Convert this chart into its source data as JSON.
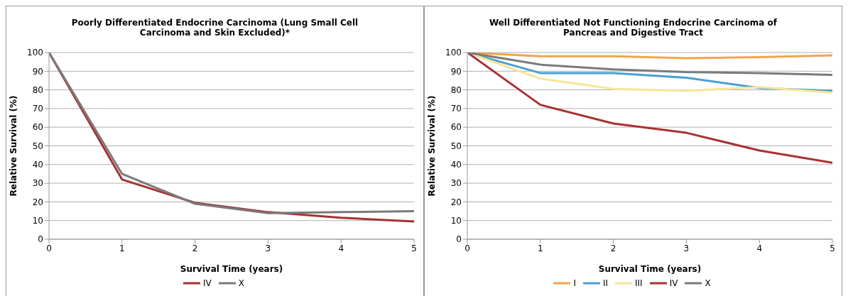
{
  "chart_data": [
    {
      "type": "line",
      "title": "Poorly Differentiated Endocrine Carcinoma (Lung Small Cell Carcinoma and Skin Excluded)*",
      "xlabel": "Survival Time (years)",
      "ylabel": "Relative Survival (%)",
      "x": [
        0,
        1,
        2,
        3,
        4,
        5
      ],
      "xlim": [
        0,
        5
      ],
      "xticks": [
        0,
        1,
        2,
        3,
        4,
        5
      ],
      "ylim": [
        0,
        100
      ],
      "yticks": [
        0,
        10,
        20,
        30,
        40,
        50,
        60,
        70,
        80,
        90,
        100
      ],
      "grid": "y",
      "legend": "bottom",
      "marker": "none",
      "line_style": "solid",
      "series": [
        {
          "name": "IV",
          "color": "#a83232",
          "values": [
            100,
            32,
            19.5,
            14.5,
            11.5,
            9.5
          ]
        },
        {
          "name": "X",
          "color": "#7a7a7a",
          "values": [
            100,
            35,
            19,
            14,
            14.5,
            15
          ]
        }
      ]
    },
    {
      "type": "line",
      "title": "Well Differentiated Not Functioning Endocrine Carcinoma of Pancreas and Digestive Tract",
      "xlabel": "Survival Time (years)",
      "ylabel": "Relative Survival (%)",
      "x": [
        0,
        1,
        2,
        3,
        4,
        5
      ],
      "xlim": [
        0,
        5
      ],
      "xticks": [
        0,
        1,
        2,
        3,
        4,
        5
      ],
      "ylim": [
        0,
        100
      ],
      "yticks": [
        0,
        10,
        20,
        30,
        40,
        50,
        60,
        70,
        80,
        90,
        100
      ],
      "grid": "y",
      "legend": "bottom",
      "marker": "none",
      "line_style": "solid",
      "series": [
        {
          "name": "I",
          "color": "#f0a54a",
          "values": [
            100,
            98,
            98,
            97,
            97.5,
            98.5
          ]
        },
        {
          "name": "II",
          "color": "#4a9fd0",
          "values": [
            100,
            89,
            89,
            86.5,
            81,
            79.5
          ]
        },
        {
          "name": "III",
          "color": "#f7e59a",
          "values": [
            100,
            86,
            80.5,
            79.5,
            81.5,
            78.5
          ]
        },
        {
          "name": "IV",
          "color": "#a83232",
          "values": [
            100,
            72,
            62,
            57,
            47.5,
            41
          ]
        },
        {
          "name": "X",
          "color": "#7a7a7a",
          "values": [
            100,
            93.5,
            91,
            89.5,
            89,
            88
          ]
        }
      ]
    }
  ]
}
